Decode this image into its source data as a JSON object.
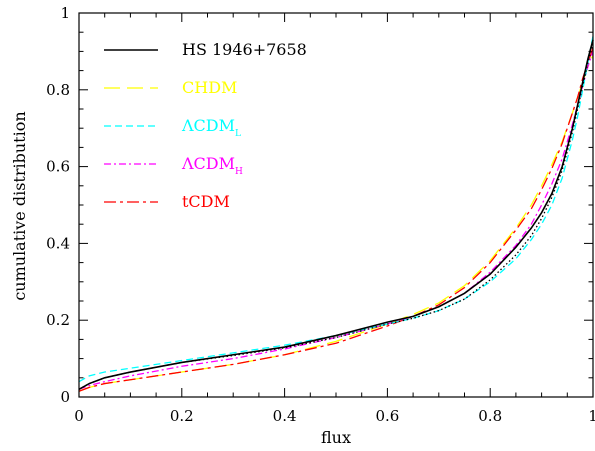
{
  "chart_data": {
    "type": "line",
    "xlabel": "flux",
    "ylabel": "cumulative distribution",
    "xlim": [
      0,
      1
    ],
    "ylim": [
      0,
      1
    ],
    "x_ticks": [
      "0",
      "0.2",
      "0.4",
      "0.6",
      "0.8",
      "1"
    ],
    "y_ticks": [
      "0",
      "0.2",
      "0.4",
      "0.6",
      "0.8",
      "1"
    ],
    "legend_position": "top-left",
    "series": [
      {
        "name": "HS 1946+7658",
        "color": "#000000",
        "style": "solid",
        "x": [
          0,
          0.02,
          0.05,
          0.1,
          0.2,
          0.3,
          0.4,
          0.5,
          0.6,
          0.65,
          0.7,
          0.75,
          0.8,
          0.85,
          0.88,
          0.9,
          0.92,
          0.94,
          0.96,
          0.97,
          0.98,
          0.99,
          1.0
        ],
        "y": [
          0.02,
          0.035,
          0.05,
          0.065,
          0.09,
          0.11,
          0.13,
          0.16,
          0.195,
          0.21,
          0.235,
          0.27,
          0.32,
          0.39,
          0.44,
          0.48,
          0.53,
          0.6,
          0.7,
          0.76,
          0.82,
          0.88,
          0.93
        ]
      },
      {
        "name": "",
        "color": "#000000",
        "style": "dotted",
        "x": [
          0,
          0.02,
          0.05,
          0.1,
          0.2,
          0.3,
          0.4,
          0.5,
          0.6,
          0.65,
          0.7,
          0.75,
          0.8,
          0.85,
          0.88,
          0.9,
          0.92,
          0.94,
          0.96,
          0.97,
          0.98,
          0.99,
          1.0
        ],
        "y": [
          0.02,
          0.035,
          0.05,
          0.065,
          0.09,
          0.108,
          0.128,
          0.155,
          0.19,
          0.205,
          0.225,
          0.255,
          0.305,
          0.37,
          0.42,
          0.465,
          0.52,
          0.59,
          0.69,
          0.75,
          0.81,
          0.87,
          0.92
        ]
      },
      {
        "name": "CHDM",
        "color": "#ffff00",
        "style": "longdash",
        "x": [
          0,
          0.02,
          0.05,
          0.1,
          0.2,
          0.3,
          0.4,
          0.5,
          0.6,
          0.65,
          0.7,
          0.75,
          0.8,
          0.85,
          0.88,
          0.9,
          0.92,
          0.94,
          0.96,
          0.97,
          0.98,
          0.99,
          1.0
        ],
        "y": [
          0.015,
          0.025,
          0.035,
          0.045,
          0.065,
          0.085,
          0.11,
          0.145,
          0.19,
          0.215,
          0.245,
          0.29,
          0.355,
          0.44,
          0.5,
          0.55,
          0.605,
          0.665,
          0.74,
          0.78,
          0.82,
          0.86,
          0.89
        ]
      },
      {
        "name": "ΛCDM",
        "name_sub": "L",
        "color": "#00ffff",
        "style": "dashed",
        "x": [
          0,
          0.02,
          0.05,
          0.1,
          0.2,
          0.3,
          0.4,
          0.5,
          0.6,
          0.65,
          0.7,
          0.75,
          0.8,
          0.85,
          0.88,
          0.9,
          0.92,
          0.94,
          0.96,
          0.97,
          0.98,
          0.99,
          1.0
        ],
        "y": [
          0.04,
          0.055,
          0.065,
          0.075,
          0.095,
          0.115,
          0.135,
          0.16,
          0.19,
          0.205,
          0.225,
          0.255,
          0.3,
          0.36,
          0.41,
          0.45,
          0.5,
          0.57,
          0.67,
          0.73,
          0.8,
          0.87,
          0.94
        ]
      },
      {
        "name": "ΛCDM",
        "name_sub": "H",
        "color": "#ff00ff",
        "style": "dashdot",
        "x": [
          0,
          0.02,
          0.05,
          0.1,
          0.2,
          0.3,
          0.4,
          0.5,
          0.6,
          0.65,
          0.7,
          0.75,
          0.8,
          0.85,
          0.88,
          0.9,
          0.92,
          0.94,
          0.96,
          0.97,
          0.98,
          0.99,
          1.0
        ],
        "y": [
          0.02,
          0.03,
          0.04,
          0.055,
          0.08,
          0.1,
          0.125,
          0.155,
          0.19,
          0.21,
          0.235,
          0.27,
          0.325,
          0.395,
          0.45,
          0.5,
          0.555,
          0.62,
          0.71,
          0.76,
          0.81,
          0.86,
          0.9
        ]
      },
      {
        "name": "tCDM",
        "color": "#ff0000",
        "style": "dashdotlong",
        "x": [
          0,
          0.02,
          0.05,
          0.1,
          0.2,
          0.3,
          0.4,
          0.5,
          0.6,
          0.65,
          0.7,
          0.75,
          0.8,
          0.85,
          0.88,
          0.9,
          0.92,
          0.94,
          0.96,
          0.97,
          0.98,
          0.99,
          1.0
        ],
        "y": [
          0.015,
          0.025,
          0.035,
          0.045,
          0.065,
          0.085,
          0.11,
          0.14,
          0.185,
          0.21,
          0.24,
          0.285,
          0.35,
          0.435,
          0.49,
          0.54,
          0.595,
          0.66,
          0.74,
          0.78,
          0.83,
          0.87,
          0.91
        ]
      }
    ]
  }
}
